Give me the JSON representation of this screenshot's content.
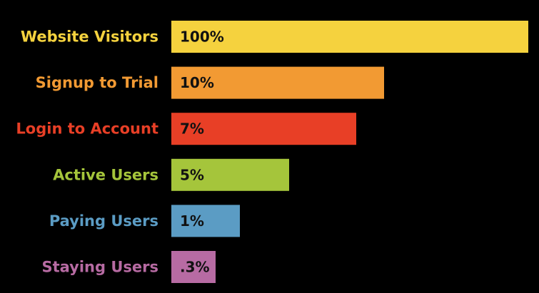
{
  "chart_data": {
    "type": "bar",
    "orientation": "horizontal",
    "categories": [
      "Website Visitors",
      "Signup to Trial",
      "Login to Account",
      "Active Users",
      "Paying Users",
      "Staying Users"
    ],
    "values": [
      100,
      10,
      7,
      5,
      1,
      0.3
    ],
    "value_labels": [
      "100%",
      "10%",
      "7%",
      "5%",
      "1%",
      ".3%"
    ],
    "colors": [
      "#F5D23E",
      "#F29A33",
      "#E83F26",
      "#A5C53B",
      "#5B9CC4",
      "#B76BA3"
    ],
    "title": "",
    "xlabel": "",
    "ylabel": "",
    "grid": false,
    "legend": "none",
    "background": "#000000"
  }
}
